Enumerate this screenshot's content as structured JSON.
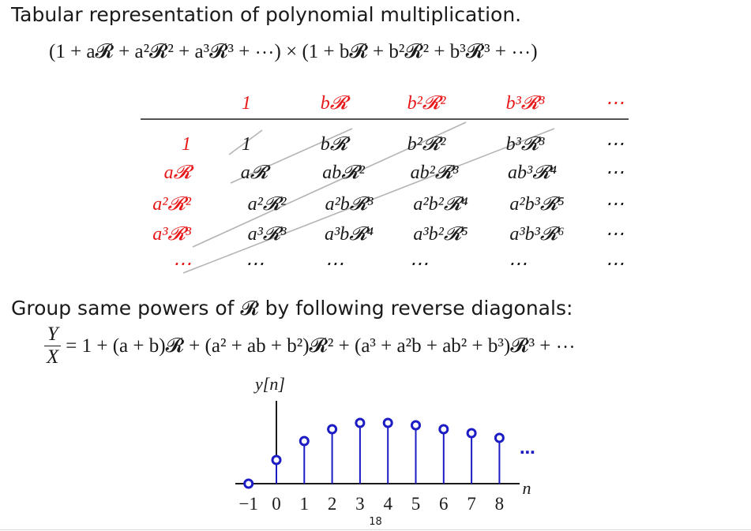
{
  "slide": {
    "title": "Tabular representation of polynomial multiplication.",
    "product_expr": "(1 + a𝓡 + a²𝓡² + a³𝓡³ + ⋯) × (1 + b𝓡 + b²𝓡² + b³𝓡³ + ⋯)",
    "group_text": "Group same powers of 𝓡 by following reverse diagonals:",
    "equation": {
      "numerator": "Y",
      "denominator": "X",
      "rhs": "= 1 + (a + b)𝓡 + (a² + ab + b²)𝓡² + (a³ + a²b + ab² + b³)𝓡³ + ⋯"
    },
    "page_number": "18"
  },
  "table": {
    "column_headers": [
      "1",
      "b𝓡",
      "b²𝓡²",
      "b³𝓡³",
      "⋯"
    ],
    "row_headers": [
      "1",
      "a𝓡",
      "a²𝓡²",
      "a³𝓡³",
      "⋯"
    ],
    "cells": [
      [
        "1",
        "b𝓡",
        "b²𝓡²",
        "b³𝓡³",
        "⋯"
      ],
      [
        "a𝓡",
        "ab𝓡²",
        "ab²𝓡³",
        "ab³𝓡⁴",
        "⋯"
      ],
      [
        "a²𝓡²",
        "a²b𝓡³",
        "a²b²𝓡⁴",
        "a²b³𝓡⁵",
        "⋯"
      ],
      [
        "a³𝓡³",
        "a³b𝓡⁴",
        "a³b²𝓡⁵",
        "a³b³𝓡⁶",
        "⋯"
      ],
      [
        "⋯",
        "⋯",
        "⋯",
        "⋯",
        "⋯"
      ]
    ],
    "header_color": "#e8191b",
    "diagonal_color": "#b4b4b4"
  },
  "stem_plot": {
    "y_label": "y[n]",
    "x_label": "n",
    "x_ticks": [
      "−1",
      "0",
      "1",
      "2",
      "3",
      "4",
      "5",
      "6",
      "7",
      "8"
    ],
    "samples": [
      {
        "n": -1,
        "y": 0
      },
      {
        "n": 0,
        "y": 0.3
      },
      {
        "n": 1,
        "y": 0.54
      },
      {
        "n": 2,
        "y": 0.69
      },
      {
        "n": 3,
        "y": 0.77
      },
      {
        "n": 4,
        "y": 0.77
      },
      {
        "n": 5,
        "y": 0.74
      },
      {
        "n": 6,
        "y": 0.69
      },
      {
        "n": 7,
        "y": 0.64
      },
      {
        "n": 8,
        "y": 0.58
      }
    ],
    "continuation": "⋯",
    "stem_color": "#1c1cc4"
  }
}
